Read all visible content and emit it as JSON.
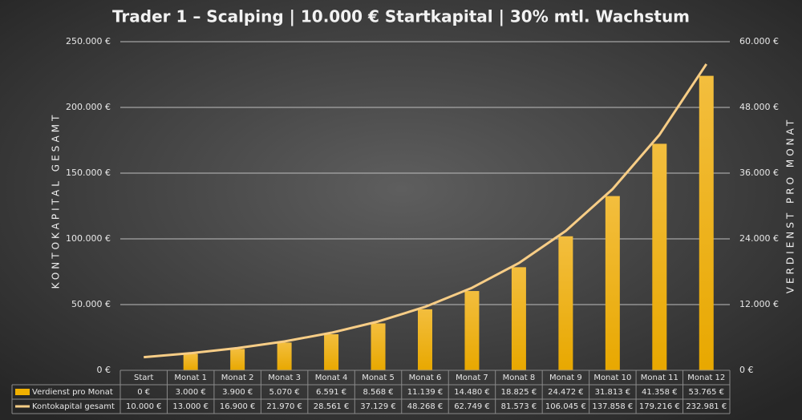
{
  "chart_data": {
    "type": "combo",
    "title": "Trader 1 – Scalping | 10.000 € Startkapital | 30% mtl. Wachstum",
    "y_label": "KONTOKAPITAL GESAMT",
    "y2_label": "VERDIENST PRO MONAT",
    "categories": [
      "Start",
      "Monat 1",
      "Monat 2",
      "Monat 3",
      "Monat 4",
      "Monat 5",
      "Monat 6",
      "Monat 7",
      "Monat 8",
      "Monat 9",
      "Monat 10",
      "Monat 11",
      "Monat 12"
    ],
    "series": [
      {
        "name": "Verdienst pro Monat",
        "type": "bar",
        "axis": "y2",
        "color": "#f0b000",
        "values": [
          0,
          3000,
          3900,
          5070,
          6591,
          8568,
          11139,
          14480,
          18825,
          24472,
          31813,
          41358,
          53765
        ],
        "value_labels": [
          "0 €",
          "3.000 €",
          "3.900 €",
          "5.070 €",
          "6.591 €",
          "8.568 €",
          "11.139 €",
          "14.480 €",
          "18.825 €",
          "24.472 €",
          "31.813 €",
          "41.358 €",
          "53.765 €"
        ]
      },
      {
        "name": "Kontokapital gesamt",
        "type": "line",
        "axis": "y",
        "color": "#f7cd86",
        "values": [
          10000,
          13000,
          16900,
          21970,
          28561,
          37129,
          48268,
          62749,
          81573,
          106045,
          137858,
          179216,
          232981
        ],
        "value_labels": [
          "10.000 €",
          "13.000 €",
          "16.900 €",
          "21.970 €",
          "28.561 €",
          "37.129 €",
          "48.268 €",
          "62.749 €",
          "81.573 €",
          "106.045 €",
          "137.858 €",
          "179.216 €",
          "232.981 €"
        ]
      }
    ],
    "ylim": [
      0,
      250000
    ],
    "yticks": [
      {
        "value": 0,
        "label": "0 €"
      },
      {
        "value": 50000,
        "label": "50.000 €"
      },
      {
        "value": 100000,
        "label": "100.000 €"
      },
      {
        "value": 150000,
        "label": "150.000 €"
      },
      {
        "value": 200000,
        "label": "200.000 €"
      },
      {
        "value": 250000,
        "label": "250.000 €"
      }
    ],
    "y2lim": [
      0,
      60000
    ],
    "y2ticks": [
      {
        "value": 0,
        "label": "0 €"
      },
      {
        "value": 12000,
        "label": "12.000 €"
      },
      {
        "value": 24000,
        "label": "24.000 €"
      },
      {
        "value": 36000,
        "label": "36.000 €"
      },
      {
        "value": 48000,
        "label": "48.000 €"
      },
      {
        "value": 60000,
        "label": "60.000 €"
      }
    ],
    "grid": true
  }
}
